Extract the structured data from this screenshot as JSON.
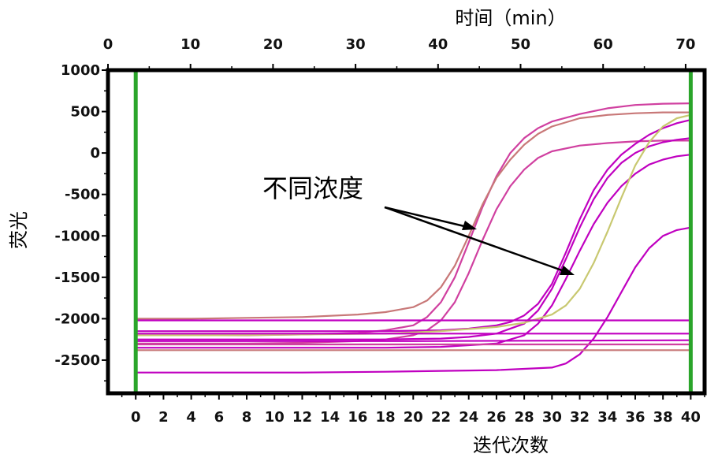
{
  "chart_data": {
    "type": "line",
    "top_axis_label": "时间（min）",
    "x_top_ticks": [
      "0",
      "10",
      "20",
      "30",
      "40",
      "50",
      "60",
      "70"
    ],
    "x_top_range": [
      0,
      72.3
    ],
    "xlabel": "迭代次数",
    "x_ticks": [
      "0",
      "2",
      "4",
      "6",
      "8",
      "10",
      "12",
      "14",
      "16",
      "18",
      "20",
      "22",
      "24",
      "26",
      "28",
      "30",
      "32",
      "34",
      "36",
      "38",
      "40"
    ],
    "ylabel": "荧光",
    "y_ticks": [
      "1000",
      "500",
      "0",
      "-500",
      "-1000",
      "-1500",
      "-2000",
      "-2500"
    ],
    "xlim": [
      -2,
      41
    ],
    "ylim": [
      -2900,
      1000
    ],
    "grid": false,
    "markers": [
      0,
      40
    ],
    "annotation": "不同浓度",
    "colors": {
      "magenta": "#c000c0",
      "pink": "#d040a0",
      "rose": "#c87878",
      "olive": "#c8c870",
      "marker": "#2aa52a"
    },
    "series": [
      {
        "color": "pink",
        "x": [
          0,
          4,
          8,
          12,
          16,
          18,
          20,
          21,
          22,
          23,
          24,
          25,
          26,
          27,
          28,
          29,
          30,
          32,
          34,
          36,
          38,
          40
        ],
        "values": [
          -2200,
          -2200,
          -2200,
          -2190,
          -2170,
          -2140,
          -2080,
          -1980,
          -1800,
          -1500,
          -1080,
          -650,
          -280,
          0,
          180,
          300,
          380,
          470,
          540,
          580,
          595,
          600
        ]
      },
      {
        "color": "rose",
        "x": [
          0,
          4,
          8,
          12,
          16,
          18,
          20,
          21,
          22,
          23,
          24,
          25,
          26,
          27,
          28,
          29,
          30,
          32,
          34,
          36,
          38,
          40
        ],
        "values": [
          -2000,
          -2000,
          -1990,
          -1980,
          -1950,
          -1920,
          -1860,
          -1780,
          -1620,
          -1360,
          -1000,
          -620,
          -300,
          -80,
          100,
          230,
          320,
          420,
          460,
          480,
          490,
          490
        ]
      },
      {
        "color": "pink",
        "x": [
          0,
          4,
          8,
          12,
          16,
          18,
          20,
          21,
          22,
          23,
          24,
          25,
          26,
          27,
          28,
          29,
          30,
          32,
          34,
          36,
          38,
          40
        ],
        "values": [
          -2300,
          -2300,
          -2300,
          -2290,
          -2270,
          -2250,
          -2200,
          -2140,
          -2020,
          -1800,
          -1450,
          -1050,
          -680,
          -400,
          -200,
          -60,
          20,
          90,
          120,
          140,
          150,
          150
        ]
      },
      {
        "color": "magenta",
        "x": [
          0,
          6,
          12,
          18,
          22,
          24,
          26,
          27,
          28,
          29,
          30,
          31,
          32,
          33,
          34,
          35,
          36,
          37,
          38,
          39,
          40
        ],
        "values": [
          -2150,
          -2150,
          -2150,
          -2150,
          -2140,
          -2120,
          -2080,
          -2040,
          -1960,
          -1820,
          -1580,
          -1200,
          -800,
          -450,
          -200,
          -20,
          110,
          220,
          300,
          360,
          400
        ]
      },
      {
        "color": "magenta",
        "x": [
          0,
          6,
          12,
          18,
          22,
          24,
          26,
          28,
          29,
          30,
          31,
          32,
          33,
          34,
          35,
          36,
          37,
          38,
          39,
          40
        ],
        "values": [
          -2250,
          -2250,
          -2250,
          -2250,
          -2240,
          -2220,
          -2180,
          -2060,
          -1900,
          -1640,
          -1280,
          -900,
          -560,
          -300,
          -120,
          0,
          80,
          130,
          160,
          180
        ]
      },
      {
        "color": "magenta",
        "x": [
          0,
          6,
          12,
          18,
          22,
          26,
          28,
          29,
          30,
          31,
          32,
          33,
          34,
          35,
          36,
          37,
          38,
          39,
          40
        ],
        "values": [
          -2350,
          -2350,
          -2350,
          -2350,
          -2340,
          -2300,
          -2200,
          -2060,
          -1840,
          -1520,
          -1180,
          -860,
          -600,
          -400,
          -250,
          -140,
          -80,
          -40,
          -20
        ]
      },
      {
        "color": "olive",
        "x": [
          0,
          6,
          12,
          18,
          22,
          26,
          28,
          30,
          31,
          32,
          33,
          34,
          35,
          36,
          37,
          38,
          39,
          40
        ],
        "values": [
          -2200,
          -2200,
          -2190,
          -2180,
          -2150,
          -2100,
          -2050,
          -1950,
          -1840,
          -1640,
          -1330,
          -950,
          -540,
          -150,
          130,
          320,
          420,
          460
        ]
      },
      {
        "color": "magenta",
        "x": [
          0,
          6,
          12,
          18,
          22,
          26,
          30,
          31,
          32,
          33,
          34,
          35,
          36,
          37,
          38,
          39,
          40
        ],
        "values": [
          -2650,
          -2650,
          -2650,
          -2640,
          -2630,
          -2620,
          -2590,
          -2540,
          -2430,
          -2240,
          -1980,
          -1680,
          -1380,
          -1150,
          -1000,
          -930,
          -900
        ]
      },
      {
        "color": "magenta",
        "x": [
          0,
          40
        ],
        "values": [
          -2020,
          -2020
        ]
      },
      {
        "color": "magenta",
        "x": [
          0,
          20,
          40
        ],
        "values": [
          -2180,
          -2180,
          -2180
        ]
      },
      {
        "color": "magenta",
        "x": [
          0,
          20,
          40
        ],
        "values": [
          -2270,
          -2270,
          -2260
        ]
      },
      {
        "color": "pink",
        "x": [
          0,
          20,
          40
        ],
        "values": [
          -2310,
          -2310,
          -2310
        ]
      },
      {
        "color": "rose",
        "x": [
          0,
          20,
          40
        ],
        "values": [
          -2380,
          -2380,
          -2380
        ]
      }
    ]
  }
}
